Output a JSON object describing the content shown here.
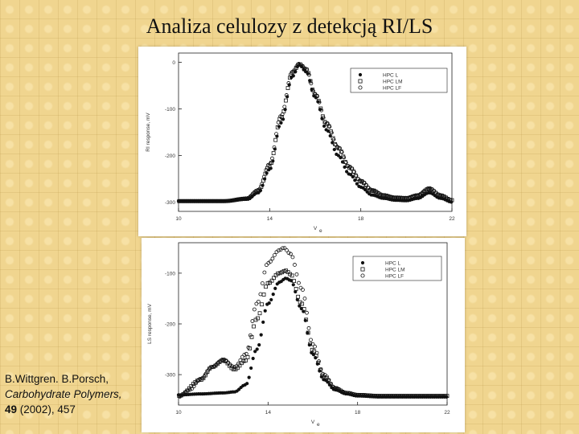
{
  "title": "Analiza celulozy z detekcją RI/LS",
  "citation": {
    "authors": "B.Wittgren. B.Porsch,",
    "journal": "Carbohydrate Polymers,",
    "volume": "49",
    "rest": "(2002), 457"
  },
  "colors": {
    "background": "#f0d58f",
    "marker": "#111111"
  },
  "chart_data": [
    {
      "type": "scatter",
      "ylabel": "RI response, mV",
      "xlabel": "V",
      "xlabel_sub": "e",
      "xlim": [
        10,
        22
      ],
      "ylim": [
        -320,
        20
      ],
      "xticks": [
        10,
        14,
        18,
        22
      ],
      "yticks": [
        0,
        -100,
        -200,
        -300
      ],
      "grid": false,
      "legend_position": "top-right",
      "legend": [
        {
          "label": "HPC L",
          "marker": "filled-circle"
        },
        {
          "label": "HPC LM",
          "marker": "open-square"
        },
        {
          "label": "HPC LF",
          "marker": "open-circle"
        }
      ],
      "series": [
        {
          "name": "HPC L",
          "marker": "filled-circle",
          "x": [
            10.0,
            12.0,
            13.0,
            13.5,
            14.0,
            14.5,
            15.0,
            15.3,
            15.6,
            16.0,
            16.5,
            17.0,
            17.5,
            18.0,
            18.5,
            19.0,
            19.5,
            20.0,
            20.5,
            21.0,
            21.5,
            22.0
          ],
          "y": [
            -298,
            -298,
            -294,
            -280,
            -230,
            -130,
            -30,
            -5,
            -20,
            -75,
            -145,
            -200,
            -240,
            -268,
            -285,
            -292,
            -296,
            -297,
            -292,
            -280,
            -292,
            -300
          ]
        },
        {
          "name": "HPC LM",
          "marker": "open-square",
          "x": [
            10.0,
            12.0,
            13.0,
            13.5,
            14.0,
            14.5,
            15.0,
            15.3,
            15.6,
            16.0,
            16.5,
            17.0,
            17.5,
            18.0,
            18.5,
            19.0,
            19.5,
            20.0,
            20.5,
            21.0,
            21.5,
            22.0
          ],
          "y": [
            -298,
            -298,
            -293,
            -276,
            -222,
            -118,
            -22,
            -4,
            -15,
            -70,
            -132,
            -184,
            -226,
            -256,
            -276,
            -286,
            -291,
            -292,
            -286,
            -272,
            -286,
            -296
          ]
        },
        {
          "name": "HPC LF",
          "marker": "open-circle",
          "x": [
            10.0,
            12.0,
            13.0,
            13.5,
            14.0,
            14.5,
            15.0,
            15.3,
            15.6,
            16.0,
            16.5,
            17.0,
            17.5,
            18.0,
            18.5,
            19.0,
            19.5,
            20.0,
            20.5,
            21.0,
            21.5,
            22.0
          ],
          "y": [
            -298,
            -298,
            -292,
            -274,
            -218,
            -115,
            -20,
            -3,
            -14,
            -68,
            -130,
            -182,
            -224,
            -254,
            -274,
            -285,
            -290,
            -291,
            -285,
            -270,
            -285,
            -296
          ]
        }
      ]
    },
    {
      "type": "scatter",
      "ylabel": "LS response, mV",
      "xlabel": "V",
      "xlabel_sub": "e",
      "xlim": [
        10,
        22
      ],
      "ylim": [
        -360,
        -40
      ],
      "xticks": [
        10,
        14,
        18,
        22
      ],
      "yticks": [
        -100,
        -200,
        -300
      ],
      "grid": false,
      "legend_position": "top-right",
      "legend": [
        {
          "label": "HPC L",
          "marker": "filled-circle"
        },
        {
          "label": "HPC LM",
          "marker": "open-square"
        },
        {
          "label": "HPC LF",
          "marker": "open-circle"
        }
      ],
      "series": [
        {
          "name": "HPC L",
          "marker": "filled-circle",
          "x": [
            10.0,
            11.0,
            12.0,
            12.5,
            13.0,
            13.5,
            14.0,
            14.5,
            14.8,
            15.0,
            15.5,
            16.0,
            16.5,
            17.0,
            17.5,
            18.0,
            19.0,
            20.0,
            21.0,
            22.0
          ],
          "y": [
            -340,
            -338,
            -336,
            -334,
            -320,
            -250,
            -160,
            -118,
            -110,
            -114,
            -170,
            -260,
            -310,
            -330,
            -338,
            -342,
            -344,
            -344,
            -344,
            -344
          ]
        },
        {
          "name": "HPC LM",
          "marker": "open-square",
          "x": [
            10.0,
            11.0,
            11.5,
            12.0,
            12.5,
            13.0,
            13.5,
            14.0,
            14.5,
            14.8,
            15.0,
            15.5,
            16.0,
            16.5,
            17.0,
            17.5,
            18.0,
            19.0,
            20.0,
            21.0,
            22.0
          ],
          "y": [
            -342,
            -310,
            -285,
            -272,
            -290,
            -272,
            -190,
            -120,
            -100,
            -95,
            -102,
            -160,
            -252,
            -305,
            -328,
            -336,
            -340,
            -342,
            -342,
            -342,
            -342
          ]
        },
        {
          "name": "HPC LF",
          "marker": "open-circle",
          "x": [
            10.0,
            10.5,
            11.0,
            11.5,
            12.0,
            12.5,
            13.0,
            13.5,
            14.0,
            14.5,
            14.7,
            15.0,
            15.5,
            16.0,
            16.5,
            17.0,
            17.5,
            18.0,
            19.0,
            20.0,
            21.0,
            22.0
          ],
          "y": [
            -344,
            -330,
            -308,
            -285,
            -270,
            -285,
            -260,
            -160,
            -80,
            -55,
            -50,
            -62,
            -130,
            -240,
            -300,
            -326,
            -336,
            -340,
            -342,
            -342,
            -342,
            -342
          ]
        }
      ]
    }
  ]
}
